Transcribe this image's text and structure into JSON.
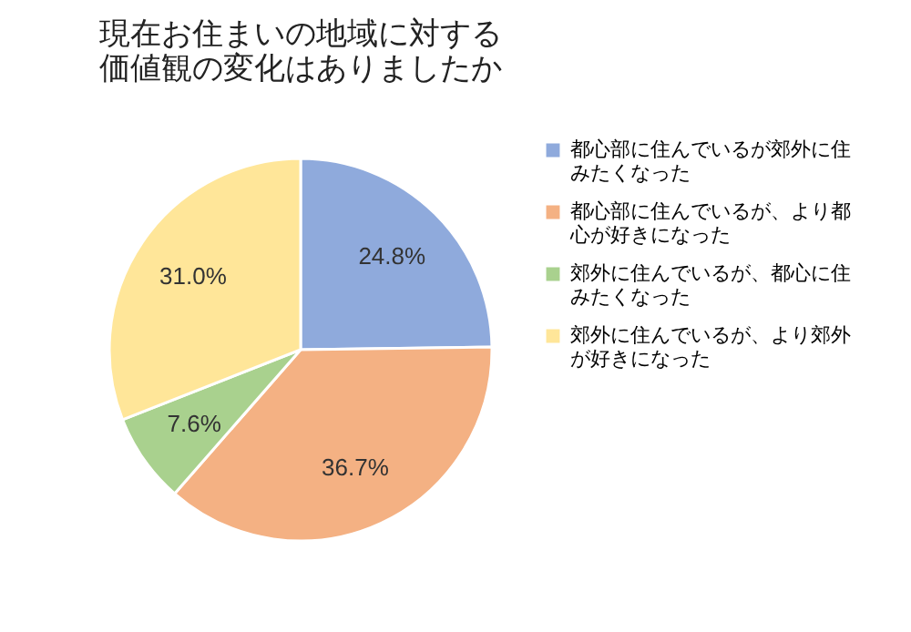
{
  "chart_data": {
    "type": "pie",
    "title": "現在お住まいの地域に対する価値観の変化はありましたか",
    "categories": [
      "都心部に住んでいるが郊外に住みたくなった",
      "都心部に住んでいるが、より都心が好きになった",
      "郊外に住んでいるが、都心に住みたくなった",
      "郊外に住んでいるが、より郊外が好きになった"
    ],
    "values": [
      24.8,
      36.7,
      7.6,
      31.0
    ],
    "value_labels": [
      "24.8%",
      "36.7%",
      "7.6%",
      "31.0%"
    ],
    "colors": [
      "#8faadc",
      "#f4b183",
      "#a9d18e",
      "#ffe699"
    ],
    "legend": "right"
  }
}
